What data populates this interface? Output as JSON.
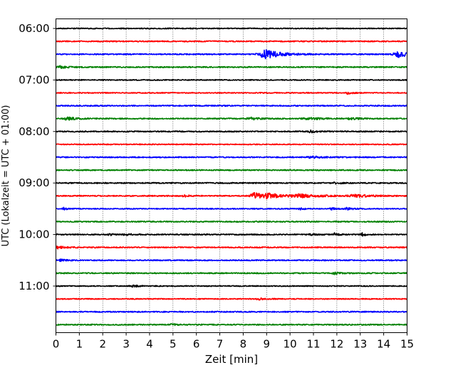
{
  "chart_data": {
    "type": "line",
    "title": "",
    "xlabel": "Zeit  [min]",
    "ylabel": "UTC (Lokalzeit = UTC + 01:00)",
    "xlim": [
      0,
      15
    ],
    "x_ticks": [
      0,
      1,
      2,
      3,
      4,
      5,
      6,
      7,
      8,
      9,
      10,
      11,
      12,
      13,
      14,
      15
    ],
    "y_tick_labels": [
      "06:00",
      "07:00",
      "08:00",
      "09:00",
      "10:00",
      "11:00"
    ],
    "y_tick_trace_index": [
      0,
      4,
      8,
      12,
      16,
      20
    ],
    "grid": "vertical dotted",
    "trace_interval_min": 15,
    "trace_colors": [
      "#000000",
      "#ff0000",
      "#0000ff",
      "#008000"
    ],
    "traces": [
      {
        "start": "06:00",
        "noise": 0.25,
        "events": []
      },
      {
        "start": "06:15",
        "noise": 0.3,
        "events": []
      },
      {
        "start": "06:30",
        "noise": 0.3,
        "events": [
          {
            "t": 8.95,
            "amp": 2.3,
            "dur": 0.9
          },
          {
            "t": 14.65,
            "amp": 1.6,
            "dur": 0.7
          }
        ]
      },
      {
        "start": "06:45",
        "noise": 0.3,
        "events": [
          {
            "t": 0.15,
            "amp": 0.6,
            "dur": 0.4
          }
        ]
      },
      {
        "start": "07:00",
        "noise": 0.25,
        "events": []
      },
      {
        "start": "07:15",
        "noise": 0.25,
        "events": [
          {
            "t": 12.45,
            "amp": 0.6,
            "dur": 0.3
          }
        ]
      },
      {
        "start": "07:30",
        "noise": 0.3,
        "events": []
      },
      {
        "start": "07:45",
        "noise": 0.3,
        "events": [
          {
            "t": 0.5,
            "amp": 0.7,
            "dur": 0.5
          },
          {
            "t": 8.3,
            "amp": 0.6,
            "dur": 0.5
          },
          {
            "t": 10.8,
            "amp": 0.5,
            "dur": 0.8
          },
          {
            "t": 12.6,
            "amp": 0.6,
            "dur": 0.4
          }
        ]
      },
      {
        "start": "08:00",
        "noise": 0.3,
        "events": [
          {
            "t": 10.9,
            "amp": 0.5,
            "dur": 0.6
          }
        ]
      },
      {
        "start": "08:15",
        "noise": 0.25,
        "events": []
      },
      {
        "start": "08:30",
        "noise": 0.3,
        "events": [
          {
            "t": 11.0,
            "amp": 0.4,
            "dur": 0.8
          }
        ]
      },
      {
        "start": "08:45",
        "noise": 0.3,
        "events": []
      },
      {
        "start": "09:00",
        "noise": 0.3,
        "events": [
          {
            "t": 11.95,
            "amp": 0.5,
            "dur": 0.3
          }
        ]
      },
      {
        "start": "09:15",
        "noise": 0.3,
        "events": [
          {
            "t": 5.5,
            "amp": 0.5,
            "dur": 0.3
          },
          {
            "t": 8.5,
            "amp": 1.6,
            "dur": 0.6
          },
          {
            "t": 9.1,
            "amp": 1.4,
            "dur": 0.5
          },
          {
            "t": 10.4,
            "amp": 0.9,
            "dur": 1.2
          },
          {
            "t": 12.8,
            "amp": 0.6,
            "dur": 1.0
          }
        ]
      },
      {
        "start": "09:30",
        "noise": 0.25,
        "events": [
          {
            "t": 0.35,
            "amp": 0.6,
            "dur": 0.2
          },
          {
            "t": 10.4,
            "amp": 0.5,
            "dur": 0.3
          },
          {
            "t": 11.8,
            "amp": 0.5,
            "dur": 0.3
          },
          {
            "t": 12.4,
            "amp": 0.6,
            "dur": 0.4
          }
        ]
      },
      {
        "start": "09:45",
        "noise": 0.3,
        "events": []
      },
      {
        "start": "10:00",
        "noise": 0.3,
        "events": [
          {
            "t": 2.3,
            "amp": 0.5,
            "dur": 0.2
          },
          {
            "t": 3.0,
            "amp": 0.4,
            "dur": 0.4
          },
          {
            "t": 10.9,
            "amp": 0.5,
            "dur": 0.2
          },
          {
            "t": 11.9,
            "amp": 0.7,
            "dur": 0.2
          },
          {
            "t": 13.1,
            "amp": 0.8,
            "dur": 0.2
          }
        ]
      },
      {
        "start": "10:15",
        "noise": 0.3,
        "events": [
          {
            "t": 0.1,
            "amp": 0.6,
            "dur": 0.4
          }
        ]
      },
      {
        "start": "10:30",
        "noise": 0.3,
        "events": [
          {
            "t": 0.2,
            "amp": 0.5,
            "dur": 0.3
          }
        ]
      },
      {
        "start": "10:45",
        "noise": 0.3,
        "events": [
          {
            "t": 11.9,
            "amp": 0.6,
            "dur": 0.3
          }
        ]
      },
      {
        "start": "11:00",
        "noise": 0.25,
        "events": [
          {
            "t": 3.3,
            "amp": 0.5,
            "dur": 0.4
          }
        ]
      },
      {
        "start": "11:15",
        "noise": 0.25,
        "events": [
          {
            "t": 8.7,
            "amp": 0.5,
            "dur": 0.4
          }
        ]
      },
      {
        "start": "11:30",
        "noise": 0.3,
        "events": []
      },
      {
        "start": "11:45",
        "noise": 0.3,
        "events": [
          {
            "t": 4.9,
            "amp": 0.4,
            "dur": 0.3
          }
        ]
      }
    ]
  }
}
